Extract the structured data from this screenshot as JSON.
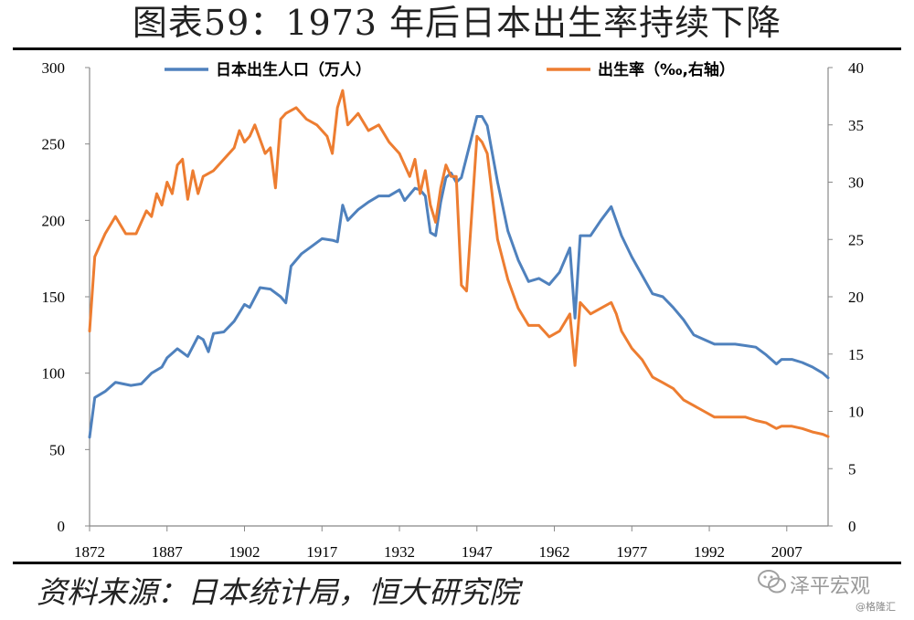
{
  "title": "图表59：1973 年后日本出生率持续下降",
  "source": "资料来源：日本统计局，恒大研究院",
  "watermark": "泽平宏观",
  "watermark_small": "@格隆汇",
  "chart_data": {
    "type": "line",
    "x_ticks": [
      "1872",
      "1887",
      "1902",
      "1917",
      "1932",
      "1947",
      "1962",
      "1977",
      "1992",
      "2007"
    ],
    "xlim": [
      1872,
      2015
    ],
    "y_left": {
      "lim": [
        0,
        300
      ],
      "ticks": [
        "0",
        "50",
        "100",
        "150",
        "200",
        "250",
        "300"
      ]
    },
    "y_right": {
      "lim": [
        0,
        40
      ],
      "ticks": [
        "0",
        "5",
        "10",
        "15",
        "20",
        "25",
        "30",
        "35",
        "40"
      ]
    },
    "legend_position": "top",
    "series": [
      {
        "name": "日本出生人口（万人）",
        "axis": "left",
        "color": "#4f81bd",
        "points": [
          [
            1872,
            58
          ],
          [
            1873,
            84
          ],
          [
            1875,
            88
          ],
          [
            1877,
            94
          ],
          [
            1880,
            92
          ],
          [
            1882,
            93
          ],
          [
            1884,
            100
          ],
          [
            1886,
            104
          ],
          [
            1887,
            110
          ],
          [
            1889,
            116
          ],
          [
            1891,
            111
          ],
          [
            1893,
            124
          ],
          [
            1894,
            122
          ],
          [
            1895,
            114
          ],
          [
            1896,
            126
          ],
          [
            1898,
            127
          ],
          [
            1900,
            134
          ],
          [
            1902,
            145
          ],
          [
            1903,
            143
          ],
          [
            1905,
            156
          ],
          [
            1907,
            155
          ],
          [
            1909,
            150
          ],
          [
            1910,
            146
          ],
          [
            1911,
            170
          ],
          [
            1913,
            178
          ],
          [
            1915,
            183
          ],
          [
            1917,
            188
          ],
          [
            1919,
            187
          ],
          [
            1920,
            186
          ],
          [
            1921,
            210
          ],
          [
            1922,
            200
          ],
          [
            1924,
            207
          ],
          [
            1926,
            212
          ],
          [
            1928,
            216
          ],
          [
            1930,
            216
          ],
          [
            1932,
            220
          ],
          [
            1933,
            213
          ],
          [
            1935,
            221
          ],
          [
            1936,
            220
          ],
          [
            1937,
            216
          ],
          [
            1938,
            192
          ],
          [
            1939,
            190
          ],
          [
            1940,
            212
          ],
          [
            1941,
            228
          ],
          [
            1942,
            231
          ],
          [
            1943,
            225
          ],
          [
            1944,
            228
          ],
          [
            1947,
            268
          ],
          [
            1948,
            268
          ],
          [
            1949,
            262
          ],
          [
            1951,
            225
          ],
          [
            1953,
            193
          ],
          [
            1955,
            174
          ],
          [
            1957,
            160
          ],
          [
            1959,
            162
          ],
          [
            1961,
            158
          ],
          [
            1963,
            166
          ],
          [
            1965,
            182
          ],
          [
            1966,
            136
          ],
          [
            1967,
            190
          ],
          [
            1969,
            190
          ],
          [
            1971,
            200
          ],
          [
            1973,
            209
          ],
          [
            1975,
            190
          ],
          [
            1977,
            176
          ],
          [
            1979,
            164
          ],
          [
            1981,
            152
          ],
          [
            1983,
            150
          ],
          [
            1985,
            143
          ],
          [
            1987,
            135
          ],
          [
            1989,
            125
          ],
          [
            1991,
            122
          ],
          [
            1993,
            119
          ],
          [
            1995,
            119
          ],
          [
            1997,
            119
          ],
          [
            1999,
            118
          ],
          [
            2001,
            117
          ],
          [
            2003,
            112
          ],
          [
            2005,
            106
          ],
          [
            2006,
            109
          ],
          [
            2008,
            109
          ],
          [
            2010,
            107
          ],
          [
            2012,
            104
          ],
          [
            2014,
            100
          ],
          [
            2015,
            97
          ]
        ]
      },
      {
        "name": "出生率（‰,右轴）",
        "axis": "right",
        "color": "#ed7d31",
        "points": [
          [
            1872,
            17
          ],
          [
            1873,
            23.5
          ],
          [
            1875,
            25.5
          ],
          [
            1877,
            27
          ],
          [
            1879,
            25.5
          ],
          [
            1881,
            25.5
          ],
          [
            1883,
            27.5
          ],
          [
            1884,
            27
          ],
          [
            1885,
            29
          ],
          [
            1886,
            28
          ],
          [
            1887,
            30
          ],
          [
            1888,
            29
          ],
          [
            1889,
            31.5
          ],
          [
            1890,
            32
          ],
          [
            1891,
            28.5
          ],
          [
            1892,
            31
          ],
          [
            1893,
            29
          ],
          [
            1894,
            30.5
          ],
          [
            1896,
            31
          ],
          [
            1898,
            32
          ],
          [
            1900,
            33
          ],
          [
            1901,
            34.5
          ],
          [
            1902,
            33.5
          ],
          [
            1903,
            34
          ],
          [
            1904,
            35
          ],
          [
            1906,
            32.5
          ],
          [
            1907,
            33
          ],
          [
            1908,
            29.5
          ],
          [
            1909,
            35.5
          ],
          [
            1910,
            36
          ],
          [
            1912,
            36.5
          ],
          [
            1914,
            35.5
          ],
          [
            1916,
            35
          ],
          [
            1918,
            34
          ],
          [
            1919,
            32.5
          ],
          [
            1920,
            36.5
          ],
          [
            1921,
            38
          ],
          [
            1922,
            35
          ],
          [
            1924,
            36
          ],
          [
            1926,
            34.5
          ],
          [
            1928,
            35
          ],
          [
            1930,
            33.5
          ],
          [
            1932,
            32.5
          ],
          [
            1934,
            30.5
          ],
          [
            1935,
            32
          ],
          [
            1936,
            29
          ],
          [
            1937,
            31
          ],
          [
            1938,
            28
          ],
          [
            1939,
            26.5
          ],
          [
            1940,
            29.5
          ],
          [
            1941,
            31.5
          ],
          [
            1942,
            30.5
          ],
          [
            1943,
            30.5
          ],
          [
            1944,
            21
          ],
          [
            1945,
            20.5
          ],
          [
            1947,
            34
          ],
          [
            1948,
            33.5
          ],
          [
            1949,
            32.5
          ],
          [
            1951,
            25
          ],
          [
            1953,
            21.5
          ],
          [
            1955,
            19
          ],
          [
            1957,
            17.5
          ],
          [
            1959,
            17.5
          ],
          [
            1961,
            16.5
          ],
          [
            1963,
            17
          ],
          [
            1965,
            18.5
          ],
          [
            1966,
            14
          ],
          [
            1967,
            19.5
          ],
          [
            1969,
            18.5
          ],
          [
            1971,
            19
          ],
          [
            1973,
            19.5
          ],
          [
            1974,
            18.5
          ],
          [
            1975,
            17
          ],
          [
            1977,
            15.5
          ],
          [
            1979,
            14.5
          ],
          [
            1981,
            13
          ],
          [
            1983,
            12.5
          ],
          [
            1985,
            12
          ],
          [
            1987,
            11
          ],
          [
            1989,
            10.5
          ],
          [
            1991,
            10
          ],
          [
            1993,
            9.5
          ],
          [
            1995,
            9.5
          ],
          [
            1997,
            9.5
          ],
          [
            1999,
            9.5
          ],
          [
            2001,
            9.2
          ],
          [
            2003,
            9
          ],
          [
            2005,
            8.5
          ],
          [
            2006,
            8.7
          ],
          [
            2008,
            8.7
          ],
          [
            2010,
            8.5
          ],
          [
            2012,
            8.2
          ],
          [
            2014,
            8.0
          ],
          [
            2015,
            7.8
          ]
        ]
      }
    ]
  }
}
